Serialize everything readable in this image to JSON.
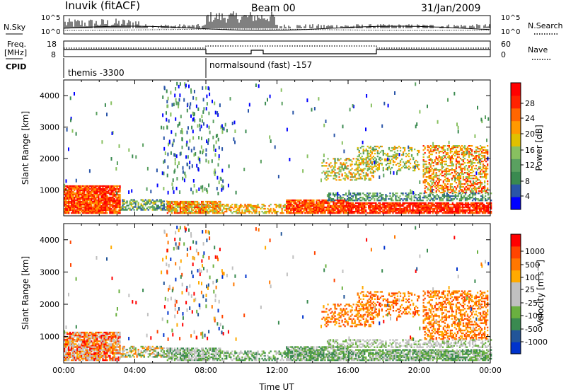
{
  "header": {
    "radar": "Inuvik (fitACF)",
    "beam": "Beam 00",
    "date": "31/Jan/2009"
  },
  "panel_labels": {
    "nsky": "N.Sky",
    "nsky_ticks": [
      "10^5",
      "10^0"
    ],
    "nsearch": "N.Search",
    "nsearch_ticks": [
      "10^5",
      "10^0"
    ],
    "freq": "Freq.",
    "freq_unit": "[MHz]",
    "freq_ticks": [
      "18",
      "8"
    ],
    "nave": "Nave",
    "nave_ticks": [
      "60",
      "0"
    ],
    "cpid": "CPID",
    "cpid_1": "themis -3300",
    "cpid_2": "normalsound (fast) -157"
  },
  "colors": {
    "power_scale": [
      "#0000ff",
      "#2a55a8",
      "#3a8a50",
      "#5aa060",
      "#88c060",
      "#e0c000",
      "#ff9900",
      "#ff6600",
      "#ff2200",
      "#ff0000"
    ],
    "velocity_scale": [
      "#0033cc",
      "#225599",
      "#3a8a50",
      "#6ab040",
      "#c0c0c0",
      "#c0c0c0",
      "#ffaa00",
      "#ff7700",
      "#ff4400",
      "#ff0000"
    ]
  },
  "chart_data": [
    {
      "type": "heatmap",
      "title": "Power",
      "ylabel": "Slant Range [km]",
      "colorbar_label": "Power [dB]",
      "colorbar_ticks": [
        "28",
        "24",
        "20",
        "16",
        "12",
        "8",
        "4"
      ],
      "xlim": [
        0,
        24
      ],
      "ylim": [
        180,
        4500
      ],
      "yticks": [
        "4000",
        "3000",
        "2000",
        "1000"
      ],
      "grid": false
    },
    {
      "type": "heatmap",
      "title": "Velocity",
      "xlabel": "Time UT",
      "ylabel": "Slant Range [km]",
      "colorbar_label": "Velocity [m s^-1]",
      "colorbar_ticks": [
        "1000",
        "500",
        "100",
        "25",
        "-25",
        "-100",
        "-500",
        "-1000"
      ],
      "xlim": [
        0,
        24
      ],
      "ylim": [
        180,
        4500
      ],
      "xticks": [
        "00:00",
        "04:00",
        "08:00",
        "12:00",
        "16:00",
        "20:00",
        "00:00"
      ],
      "yticks": [
        "4000",
        "3000",
        "2000",
        "1000"
      ],
      "grid": false
    }
  ]
}
